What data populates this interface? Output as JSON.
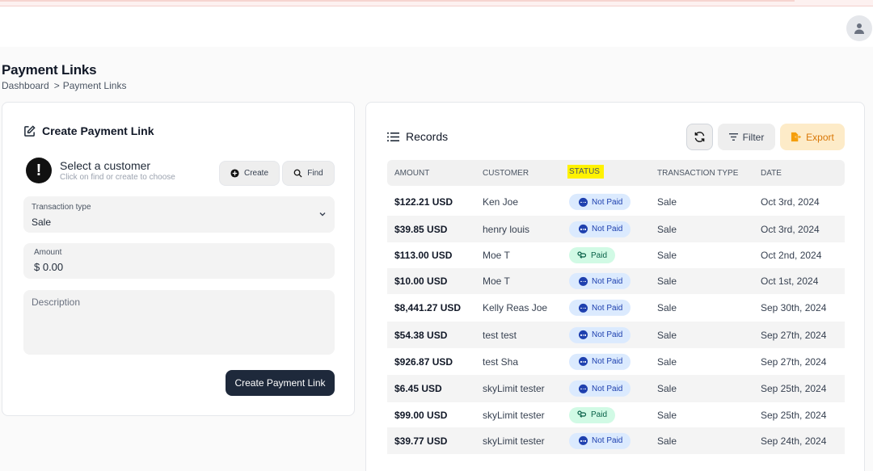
{
  "header": {
    "avatar_icon": "user-icon"
  },
  "page": {
    "title": "Payment Links",
    "breadcrumb": {
      "home": "Dashboard",
      "separator": ">",
      "current": "Payment Links"
    }
  },
  "create_card": {
    "title": "Create Payment Link",
    "customer": {
      "title": "Select a customer",
      "subtitle": "Click on find or create to choose",
      "create_label": "Create",
      "find_label": "Find"
    },
    "transaction_type": {
      "label": "Transaction type",
      "value": "Sale"
    },
    "amount": {
      "label": "Amount",
      "value": "$ 0.00"
    },
    "description": {
      "placeholder": "Description"
    },
    "submit_label": "Create Payment Link"
  },
  "records": {
    "title": "Records",
    "filter_label": "Filter",
    "export_label": "Export",
    "columns": [
      "AMOUNT",
      "CUSTOMER",
      "STATUS",
      "TRANSACTION TYPE",
      "DATE"
    ],
    "rows": [
      {
        "amount": "$122.21 USD",
        "customer": "Ken Joe",
        "status": "Not Paid",
        "type": "Sale",
        "date": "Oct 3rd, 2024"
      },
      {
        "amount": "$39.85 USD",
        "customer": "henry louis",
        "status": "Not Paid",
        "type": "Sale",
        "date": "Oct 3rd, 2024"
      },
      {
        "amount": "$113.00 USD",
        "customer": "Moe T",
        "status": "Paid",
        "type": "Sale",
        "date": "Oct 2nd, 2024"
      },
      {
        "amount": "$10.00 USD",
        "customer": "Moe T",
        "status": "Not Paid",
        "type": "Sale",
        "date": "Oct 1st, 2024"
      },
      {
        "amount": "$8,441.27 USD",
        "customer": "Kelly Reas Joe",
        "status": "Not Paid",
        "type": "Sale",
        "date": "Sep 30th, 2024"
      },
      {
        "amount": "$54.38 USD",
        "customer": "test test",
        "status": "Not Paid",
        "type": "Sale",
        "date": "Sep 27th, 2024"
      },
      {
        "amount": "$926.87 USD",
        "customer": "test Sha",
        "status": "Not Paid",
        "type": "Sale",
        "date": "Sep 27th, 2024"
      },
      {
        "amount": "$6.45 USD",
        "customer": "skyLimit tester",
        "status": "Not Paid",
        "type": "Sale",
        "date": "Sep 25th, 2024"
      },
      {
        "amount": "$99.00 USD",
        "customer": "skyLimit tester",
        "status": "Paid",
        "type": "Sale",
        "date": "Sep 25th, 2024"
      },
      {
        "amount": "$39.77 USD",
        "customer": "skyLimit tester",
        "status": "Not Paid",
        "type": "Sale",
        "date": "Sep 24th, 2024"
      }
    ]
  },
  "colors": {
    "primary_button": "#1e293b",
    "export_bg": "#fdebc8",
    "export_text": "#d97706",
    "not_paid_bg": "#dbeafe",
    "paid_bg": "#d1fae5",
    "status_highlight": "#fff200"
  },
  "top_loading_bar": {
    "progress_fraction": 0.91
  }
}
